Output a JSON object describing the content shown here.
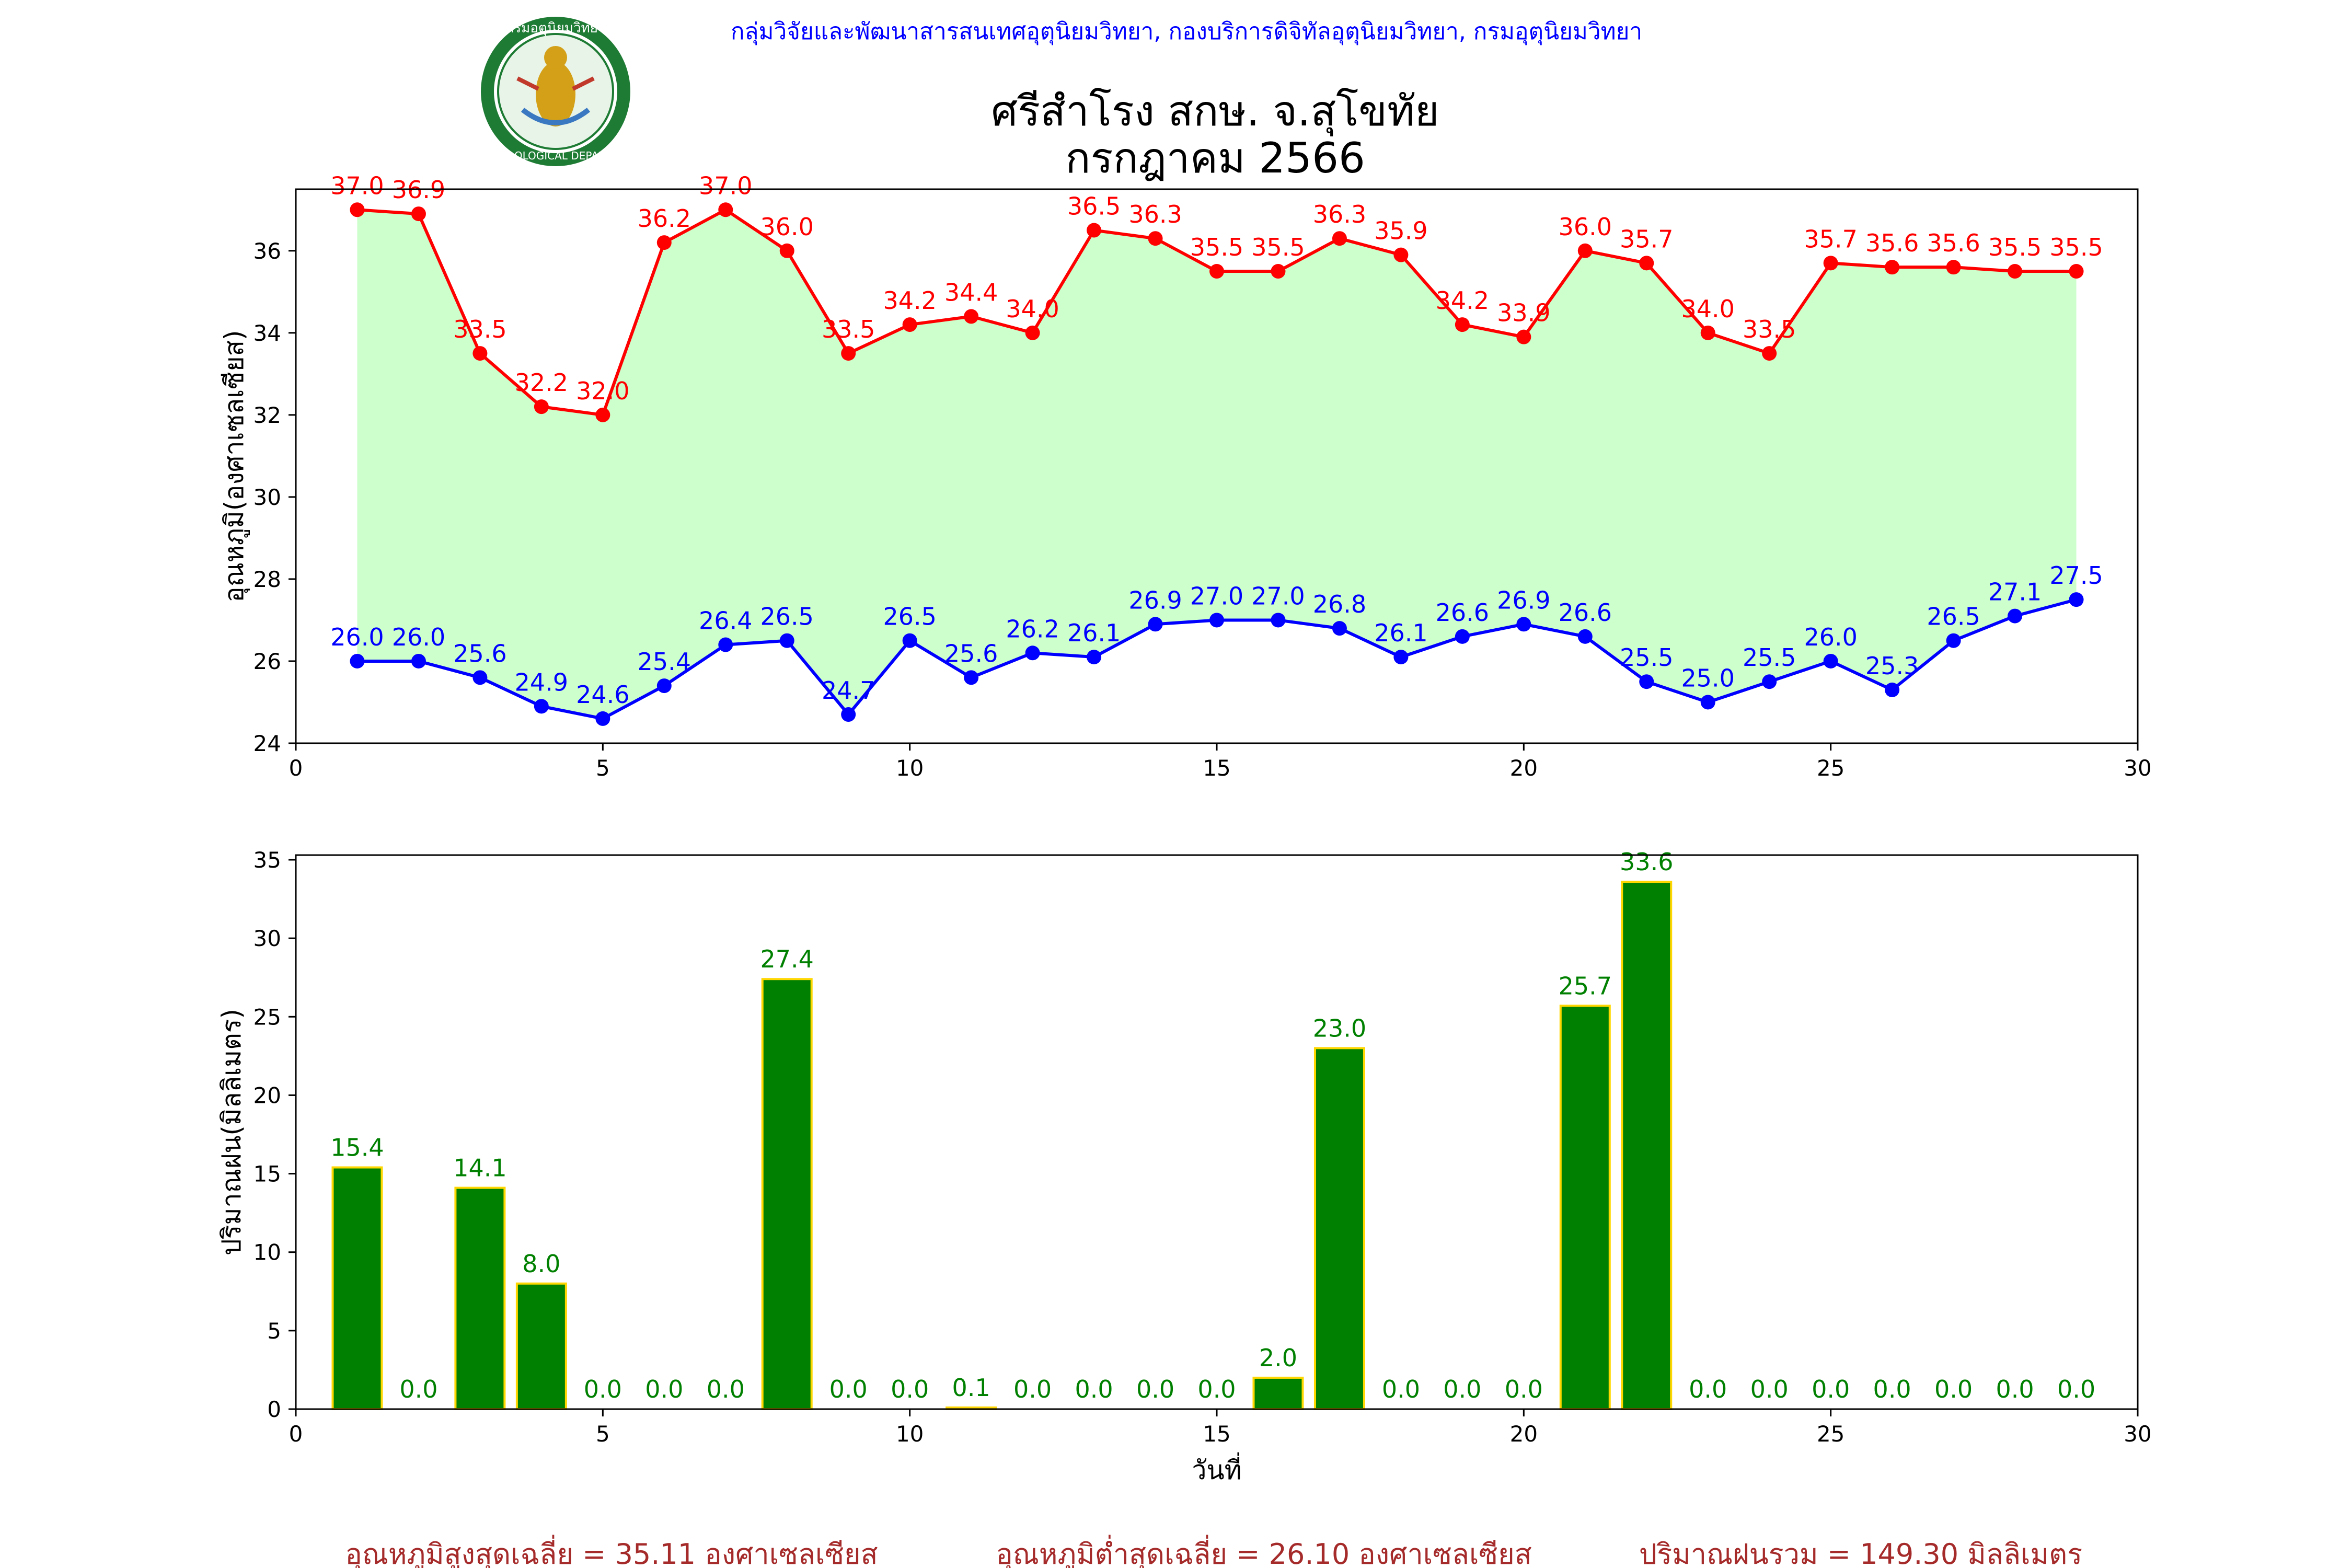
{
  "header": {
    "source": "กลุ่มวิจัยและพัฒนาสารสนเทศอุตุนิยมวิทยา, กองบริการดิจิทัลอุตุนิยมวิทยา, กรมอุตุนิยมวิทยา",
    "title_line1": "ศรีสำโรง สกษ. จ.สุโขทัย",
    "title_line2": "กรกฎาคม 2566",
    "logo_text_top": "กรมอุตุนิยมวิทยา",
    "logo_text_bottom": "METEOROLOGICAL DEPARTMENT"
  },
  "colors": {
    "max_temp": "#ff0000",
    "min_temp": "#0000ff",
    "fill": "#ccffcc",
    "rain_bar": "#008000",
    "rain_edge": "#ffd700",
    "rain_label": "#008000",
    "footer": "#a52a2a",
    "source": "#0000ff"
  },
  "chart_data": [
    {
      "type": "line",
      "ylabel": "อุณหภูมิ(องศาเซลเซียส)",
      "xlim": [
        0,
        30
      ],
      "ylim": [
        24,
        37.5
      ],
      "xticks": [
        0,
        5,
        10,
        15,
        20,
        25,
        30
      ],
      "yticks": [
        24,
        26,
        28,
        30,
        32,
        34,
        36
      ],
      "x": [
        1,
        2,
        3,
        4,
        5,
        6,
        7,
        8,
        9,
        10,
        11,
        12,
        13,
        14,
        15,
        16,
        17,
        18,
        19,
        20,
        21,
        22,
        23,
        24,
        25,
        26,
        27,
        28,
        29
      ],
      "series": [
        {
          "key": "max",
          "values": [
            37.0,
            36.9,
            33.5,
            32.2,
            32.0,
            36.2,
            37.0,
            36.0,
            33.5,
            34.2,
            34.4,
            34.0,
            36.5,
            36.3,
            35.5,
            35.5,
            36.3,
            35.9,
            34.2,
            33.9,
            36.0,
            35.7,
            34.0,
            33.5,
            35.7,
            35.6,
            35.6,
            35.5,
            35.5
          ]
        },
        {
          "key": "min",
          "values": [
            26.0,
            26.0,
            25.6,
            24.9,
            24.6,
            25.4,
            26.4,
            26.5,
            24.7,
            26.5,
            25.6,
            26.2,
            26.1,
            26.9,
            27.0,
            27.0,
            26.8,
            26.1,
            26.6,
            26.9,
            26.6,
            25.5,
            25.0,
            25.5,
            26.0,
            25.3,
            26.5,
            27.1,
            27.5
          ]
        }
      ]
    },
    {
      "type": "bar",
      "ylabel": "ปริมาณฝน(มิลลิเมตร)",
      "xlabel": "วันที่",
      "xlim": [
        0,
        30
      ],
      "ylim": [
        0,
        35.3
      ],
      "xticks": [
        0,
        5,
        10,
        15,
        20,
        25,
        30
      ],
      "yticks": [
        0,
        5,
        10,
        15,
        20,
        25,
        30,
        35
      ],
      "x": [
        1,
        2,
        3,
        4,
        5,
        6,
        7,
        8,
        9,
        10,
        11,
        12,
        13,
        14,
        15,
        16,
        17,
        18,
        19,
        20,
        21,
        22,
        23,
        24,
        25,
        26,
        27,
        28,
        29
      ],
      "values": [
        15.4,
        0.0,
        14.1,
        8.0,
        0.0,
        0.0,
        0.0,
        27.4,
        0.0,
        0.0,
        0.1,
        0.0,
        0.0,
        0.0,
        0.0,
        2.0,
        23.0,
        0.0,
        0.0,
        0.0,
        25.7,
        33.6,
        0.0,
        0.0,
        0.0,
        0.0,
        0.0,
        0.0,
        0.0
      ]
    }
  ],
  "footer": {
    "avg_max": "อุณหภูมิสูงสุดเฉลี่ย = 35.11 องศาเซลเซียส",
    "avg_min": "อุณหภูมิต่ำสุดเฉลี่ย = 26.10 องศาเซลเซียส",
    "total_rain": "ปริมาณฝนรวม = 149.30 มิลลิเมตร"
  }
}
